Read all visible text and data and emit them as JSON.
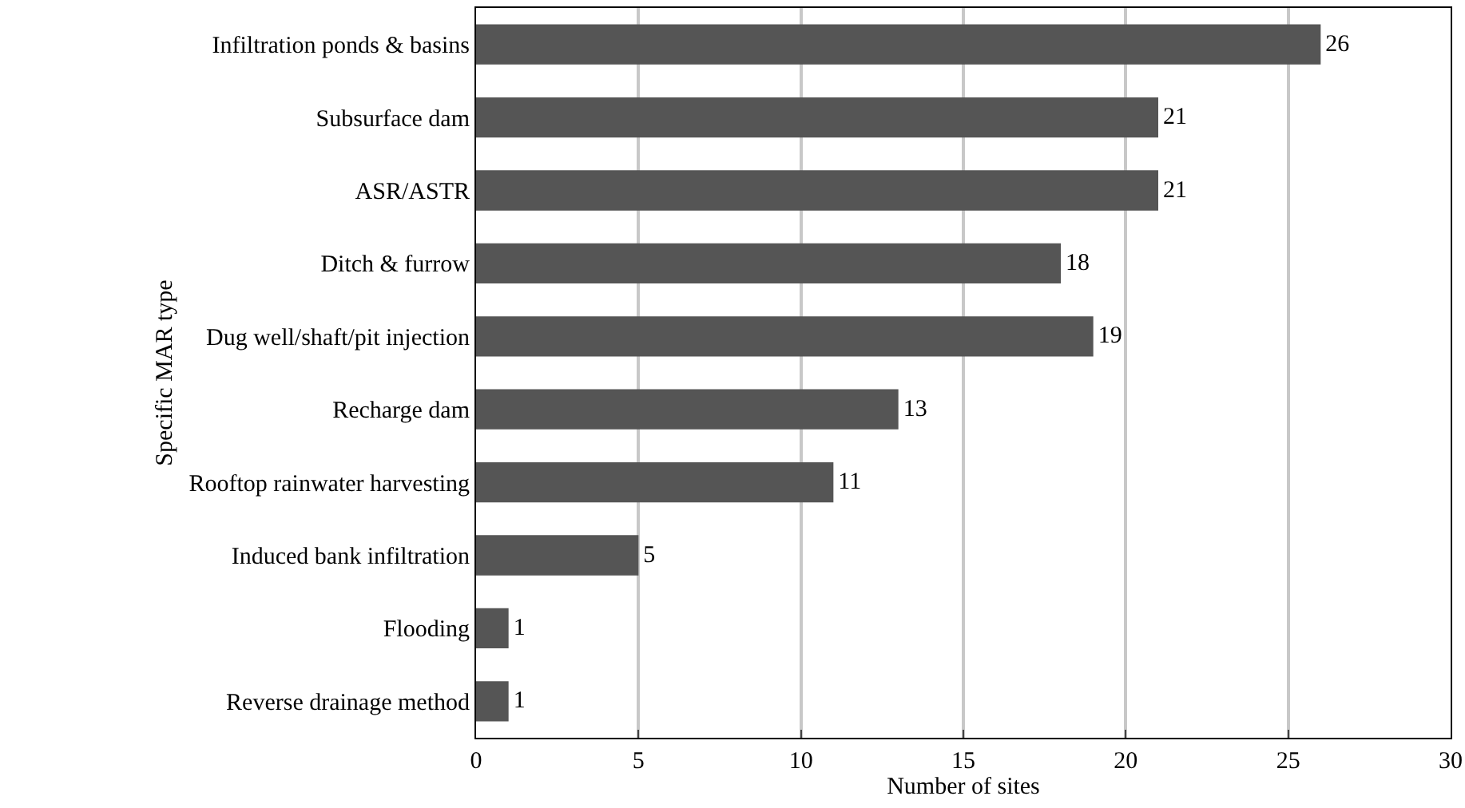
{
  "chart_data": {
    "type": "bar",
    "orientation": "horizontal",
    "xlabel": "Number of sites",
    "ylabel": "Specific MAR type",
    "categories": [
      "Infiltration ponds & basins",
      "Subsurface dam",
      "ASR/ASTR",
      "Ditch & furrow",
      "Dug well/shaft/pit injection",
      "Recharge dam",
      "Rooftop rainwater harvesting",
      "Induced bank infiltration",
      "Flooding",
      "Reverse drainage method"
    ],
    "values": [
      26,
      21,
      21,
      18,
      19,
      13,
      11,
      5,
      1,
      1
    ],
    "color": "#555555",
    "xlim": [
      0,
      30
    ],
    "xticks": [
      0,
      5,
      10,
      15,
      20,
      25,
      30
    ],
    "grid": "x",
    "data_labels": true
  }
}
